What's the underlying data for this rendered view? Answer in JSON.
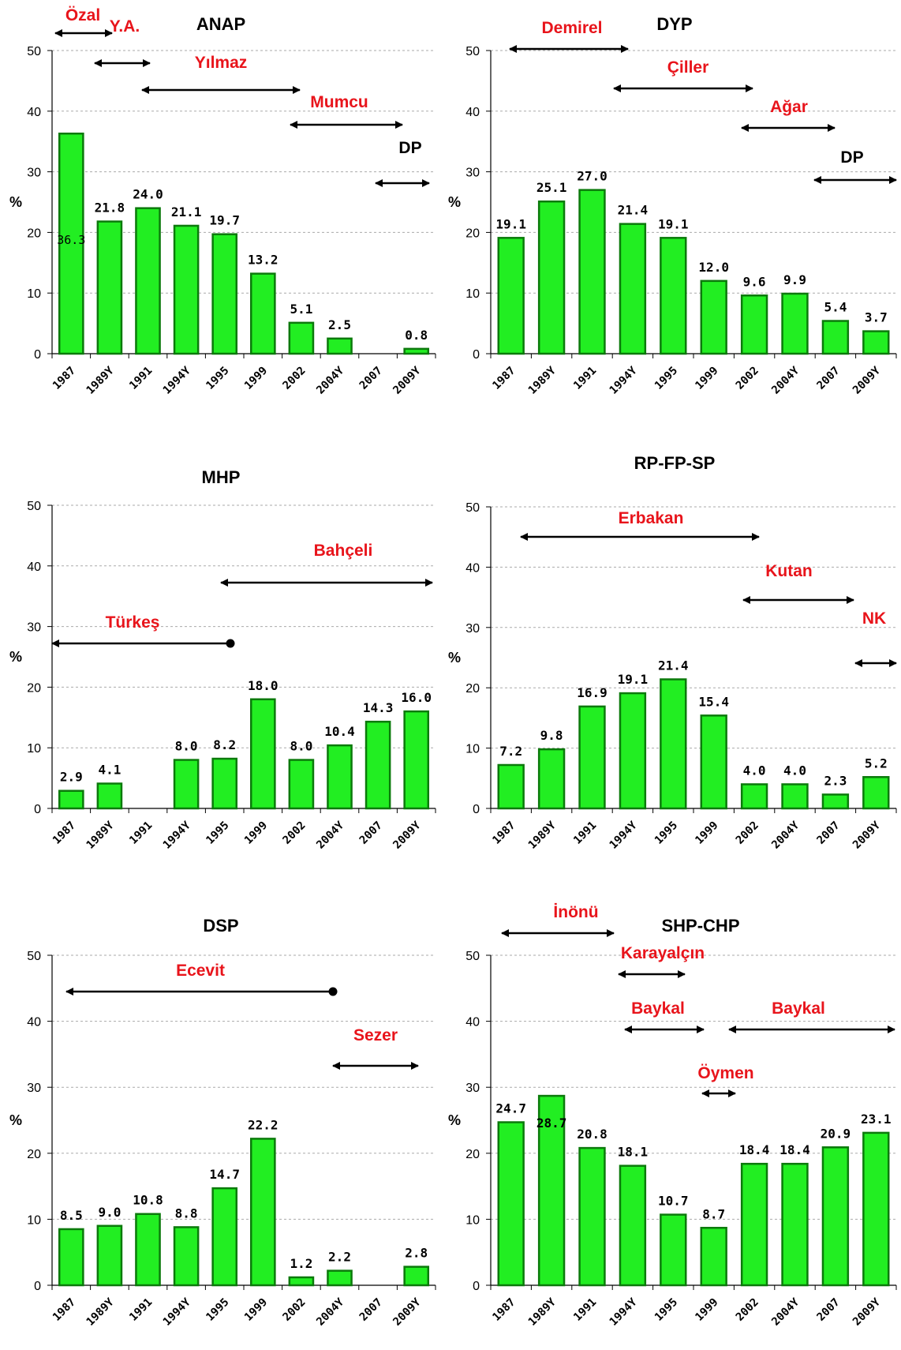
{
  "colors": {
    "bar_fill": "#22ee22",
    "bar_stroke": "#0b7a0b",
    "leader_text": "#e8141b",
    "arrow": "#000000",
    "grid": "#aaaaaa"
  },
  "chart_data": [
    {
      "type": "bar",
      "title": "ANAP",
      "ylabel": "%",
      "ylim": [
        0,
        50
      ],
      "yticks": [
        0,
        10,
        20,
        30,
        40,
        50
      ],
      "grid": "dashed horizontal",
      "categories": [
        "1987",
        "1989Y",
        "1991",
        "1994Y",
        "1995",
        "1999",
        "2002",
        "2004Y",
        "2007",
        "2009Y"
      ],
      "values": [
        36.3,
        21.8,
        24.0,
        21.1,
        19.7,
        13.2,
        5.1,
        2.5,
        null,
        0.8
      ],
      "value_labels": [
        "36.3",
        "21.8",
        "24.0",
        "21.1",
        "19.7",
        "13.2",
        "5.1",
        "2.5",
        "",
        "0.8"
      ],
      "leaders": [
        {
          "name": "Özal",
          "from": "left-edge",
          "to": "1989Y",
          "style": "both"
        },
        {
          "name": "Y.A.",
          "from": "1989Y",
          "to": "1991",
          "style": "both"
        },
        {
          "name": "Yılmaz",
          "from": "1991",
          "to": "2002",
          "style": "both"
        },
        {
          "name": "Mumcu",
          "from": "2002",
          "to": "2007",
          "style": "both"
        },
        {
          "name": "DP",
          "from": "2007",
          "to": "2009Y",
          "style": "both",
          "color": "black"
        }
      ]
    },
    {
      "type": "bar",
      "title": "DYP",
      "ylabel": "%",
      "ylim": [
        0,
        50
      ],
      "yticks": [
        0,
        10,
        20,
        30,
        40,
        50
      ],
      "grid": "dashed horizontal",
      "categories": [
        "1987",
        "1989Y",
        "1991",
        "1994Y",
        "1995",
        "1999",
        "2002",
        "2004Y",
        "2007",
        "2009Y"
      ],
      "values": [
        19.1,
        25.1,
        27.0,
        21.4,
        19.1,
        12.0,
        9.6,
        9.9,
        5.4,
        3.7
      ],
      "value_labels": [
        "19.1",
        "25.1",
        "27.0",
        "21.4",
        "19.1",
        "12.0",
        "9.6",
        "9.9",
        "5.4",
        "3.7"
      ],
      "leaders": [
        {
          "name": "Demirel",
          "from": "1987",
          "to": "1994Y",
          "style": "both"
        },
        {
          "name": "Çiller",
          "from": "1994Y",
          "to": "2002",
          "style": "both"
        },
        {
          "name": "Ağar",
          "from": "2002",
          "to": "2007",
          "style": "both"
        },
        {
          "name": "DP",
          "from": "2007",
          "to": "right-edge",
          "style": "both",
          "color": "black"
        }
      ]
    },
    {
      "type": "bar",
      "title": "MHP",
      "ylabel": "%",
      "ylim": [
        0,
        50
      ],
      "yticks": [
        0,
        10,
        20,
        30,
        40,
        50
      ],
      "grid": "dashed horizontal",
      "categories": [
        "1987",
        "1989Y",
        "1991",
        "1994Y",
        "1995",
        "1999",
        "2002",
        "2004Y",
        "2007",
        "2009Y"
      ],
      "values": [
        2.9,
        4.1,
        null,
        8.0,
        8.2,
        18.0,
        8.0,
        10.4,
        14.3,
        16.0
      ],
      "value_labels": [
        "2.9",
        "4.1",
        "",
        "8.0",
        "8.2",
        "18.0",
        "8.0",
        "10.4",
        "14.3",
        "16.0"
      ],
      "leaders": [
        {
          "name": "Türkeş",
          "from": "left-edge",
          "to": "1995",
          "style": "dot"
        },
        {
          "name": "Bahçeli",
          "from": "1995",
          "to": "2009Y",
          "style": "both"
        }
      ]
    },
    {
      "type": "bar",
      "title": "RP-FP-SP",
      "ylabel": "%",
      "ylim": [
        0,
        50
      ],
      "yticks": [
        0,
        10,
        20,
        30,
        40,
        50
      ],
      "grid": "dashed horizontal",
      "categories": [
        "1987",
        "1989Y",
        "1991",
        "1994Y",
        "1995",
        "1999",
        "2002",
        "2004Y",
        "2007",
        "2009Y"
      ],
      "values": [
        7.2,
        9.8,
        16.9,
        19.1,
        21.4,
        15.4,
        4.0,
        4.0,
        2.3,
        5.2
      ],
      "value_labels": [
        "7.2",
        "9.8",
        "16.9",
        "19.1",
        "21.4",
        "15.4",
        "4.0",
        "4.0",
        "2.3",
        "5.2"
      ],
      "leaders": [
        {
          "name": "Erbakan",
          "from": "1987",
          "to": "2002",
          "style": "both"
        },
        {
          "name": "Kutan",
          "from": "2002",
          "to": "2007",
          "style": "both"
        },
        {
          "name": "NK",
          "from": "2009Y",
          "to": "right-edge",
          "style": "both"
        }
      ]
    },
    {
      "type": "bar",
      "title": "DSP",
      "ylabel": "%",
      "ylim": [
        0,
        50
      ],
      "yticks": [
        0,
        10,
        20,
        30,
        40,
        50
      ],
      "grid": "dashed horizontal",
      "categories": [
        "1987",
        "1989Y",
        "1991",
        "1994Y",
        "1995",
        "1999",
        "2002",
        "2004Y",
        "2007",
        "2009Y"
      ],
      "values": [
        8.5,
        9.0,
        10.8,
        8.8,
        14.7,
        22.2,
        1.2,
        2.2,
        null,
        2.8
      ],
      "value_labels": [
        "8.5",
        "9.0",
        "10.8",
        "8.8",
        "14.7",
        "22.2",
        "1.2",
        "2.2",
        "",
        "2.8"
      ],
      "leaders": [
        {
          "name": "Ecevit",
          "from": "1987",
          "to": "2004Y",
          "style": "dot"
        },
        {
          "name": "Sezer",
          "from": "2004Y",
          "to": "2009Y",
          "style": "both"
        }
      ]
    },
    {
      "type": "bar",
      "title": "SHP-CHP",
      "ylabel": "%",
      "ylim": [
        0,
        50
      ],
      "yticks": [
        0,
        10,
        20,
        30,
        40,
        50
      ],
      "grid": "dashed horizontal",
      "categories": [
        "1987",
        "1989Y",
        "1991",
        "1994Y",
        "1995",
        "1999",
        "2002",
        "2004Y",
        "2007",
        "2009Y"
      ],
      "values": [
        24.7,
        28.7,
        20.8,
        18.1,
        10.7,
        8.7,
        18.4,
        18.4,
        20.9,
        23.1
      ],
      "value_labels": [
        "24.7",
        "28.7",
        "20.8",
        "18.1",
        "10.7",
        "8.7",
        "18.4",
        "18.4",
        "20.9",
        "23.1"
      ],
      "leaders": [
        {
          "name": "İnönü",
          "from": "1987",
          "to": "1994Y",
          "style": "both"
        },
        {
          "name": "Karayalçın",
          "from": "1994Y",
          "to": "1995",
          "style": "both"
        },
        {
          "name": "Baykal",
          "from": "1994Y",
          "to": "1999",
          "style": "both"
        },
        {
          "name": "Öymen",
          "from": "1999",
          "to": "1999",
          "style": "both"
        },
        {
          "name": "Baykal",
          "from": "1999",
          "to": "right-edge",
          "style": "both"
        }
      ]
    }
  ]
}
